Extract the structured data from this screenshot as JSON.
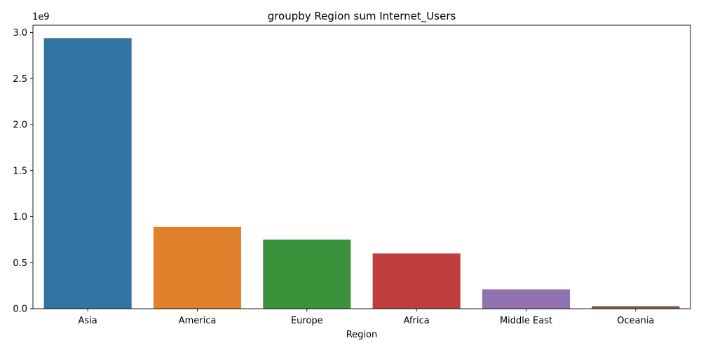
{
  "chart_data": {
    "type": "bar",
    "title": "groupby Region sum Internet_Users",
    "xlabel": "Region",
    "ylabel": "",
    "y_offset_label": "1e9",
    "categories": [
      "Asia",
      "America",
      "Europe",
      "Africa",
      "Middle East",
      "Oceania"
    ],
    "values": [
      2940000000,
      890000000,
      750000000,
      600000000,
      210000000,
      28000000
    ],
    "colors": [
      "#3274a1",
      "#e1812c",
      "#3a923a",
      "#c03d3e",
      "#9372b2",
      "#845b53"
    ],
    "ylim": [
      0,
      3080000000
    ],
    "yticks": [
      0,
      500000000,
      1000000000,
      1500000000,
      2000000000,
      2500000000,
      3000000000
    ],
    "ytick_labels": [
      "0.0",
      "0.5",
      "1.0",
      "1.5",
      "2.0",
      "2.5",
      "3.0"
    ],
    "grid": false,
    "legend": "none"
  }
}
